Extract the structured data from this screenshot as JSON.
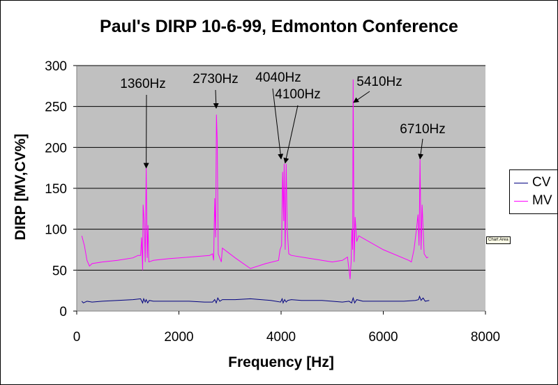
{
  "title": "Paul's DIRP 10-6-99, Edmonton Conference",
  "chart_area_tooltip": "Chart Area",
  "chart_data": {
    "type": "line",
    "title": "Paul's DIRP 10-6-99, Edmonton Conference",
    "xlabel": "Frequency [Hz]",
    "ylabel": "DIRP [MV,CV%]",
    "xlim": [
      0,
      8000
    ],
    "ylim": [
      0,
      300
    ],
    "xticks": [
      0,
      2000,
      4000,
      6000,
      8000
    ],
    "yticks": [
      0,
      50,
      100,
      150,
      200,
      250,
      300
    ],
    "grid": "horizontal",
    "plot_background": "#c0c0c0",
    "legend_position": "right",
    "series": [
      {
        "name": "CV",
        "color": "#000080",
        "points": [
          [
            100,
            12
          ],
          [
            130,
            10
          ],
          [
            200,
            12
          ],
          [
            300,
            11
          ],
          [
            500,
            12
          ],
          [
            800,
            13
          ],
          [
            1100,
            14
          ],
          [
            1250,
            15
          ],
          [
            1290,
            10
          ],
          [
            1310,
            15
          ],
          [
            1340,
            11
          ],
          [
            1360,
            14
          ],
          [
            1390,
            10
          ],
          [
            1420,
            13
          ],
          [
            1500,
            12
          ],
          [
            1800,
            12
          ],
          [
            2200,
            12
          ],
          [
            2500,
            11
          ],
          [
            2660,
            11
          ],
          [
            2700,
            14
          ],
          [
            2730,
            10
          ],
          [
            2760,
            16
          ],
          [
            2800,
            12
          ],
          [
            2850,
            14
          ],
          [
            3100,
            14
          ],
          [
            3400,
            15
          ],
          [
            3800,
            13
          ],
          [
            3990,
            11
          ],
          [
            4020,
            15
          ],
          [
            4040,
            10
          ],
          [
            4070,
            14
          ],
          [
            4100,
            11
          ],
          [
            4130,
            13
          ],
          [
            4200,
            14
          ],
          [
            4400,
            13
          ],
          [
            4800,
            13
          ],
          [
            5200,
            11
          ],
          [
            5330,
            12
          ],
          [
            5380,
            10
          ],
          [
            5410,
            16
          ],
          [
            5440,
            10
          ],
          [
            5480,
            14
          ],
          [
            5600,
            12
          ],
          [
            6000,
            12
          ],
          [
            6400,
            12
          ],
          [
            6630,
            13
          ],
          [
            6690,
            14
          ],
          [
            6710,
            18
          ],
          [
            6740,
            13
          ],
          [
            6780,
            16
          ],
          [
            6820,
            12
          ],
          [
            6900,
            13
          ]
        ]
      },
      {
        "name": "MV",
        "color": "#ff00ff",
        "points": [
          [
            100,
            92
          ],
          [
            150,
            80
          ],
          [
            200,
            62
          ],
          [
            250,
            55
          ],
          [
            300,
            58
          ],
          [
            500,
            60
          ],
          [
            800,
            62
          ],
          [
            1100,
            65
          ],
          [
            1200,
            68
          ],
          [
            1250,
            68
          ],
          [
            1270,
            90
          ],
          [
            1290,
            50
          ],
          [
            1300,
            130
          ],
          [
            1320,
            110
          ],
          [
            1340,
            60
          ],
          [
            1360,
            175
          ],
          [
            1380,
            65
          ],
          [
            1395,
            105
          ],
          [
            1410,
            60
          ],
          [
            1500,
            62
          ],
          [
            1800,
            64
          ],
          [
            2200,
            66
          ],
          [
            2600,
            68
          ],
          [
            2660,
            70
          ],
          [
            2680,
            62
          ],
          [
            2700,
            138
          ],
          [
            2720,
            90
          ],
          [
            2735,
            240
          ],
          [
            2750,
            210
          ],
          [
            2770,
            70
          ],
          [
            2800,
            65
          ],
          [
            2830,
            60
          ],
          [
            2850,
            77
          ],
          [
            3100,
            65
          ],
          [
            3400,
            52
          ],
          [
            3700,
            58
          ],
          [
            3950,
            62
          ],
          [
            3980,
            75
          ],
          [
            4010,
            80
          ],
          [
            4030,
            170
          ],
          [
            4050,
            110
          ],
          [
            4060,
            180
          ],
          [
            4080,
            75
          ],
          [
            4100,
            180
          ],
          [
            4120,
            100
          ],
          [
            4150,
            70
          ],
          [
            4200,
            68
          ],
          [
            4500,
            65
          ],
          [
            4800,
            62
          ],
          [
            5000,
            60
          ],
          [
            5200,
            62
          ],
          [
            5300,
            66
          ],
          [
            5320,
            55
          ],
          [
            5340,
            45
          ],
          [
            5350,
            39
          ],
          [
            5370,
            60
          ],
          [
            5385,
            100
          ],
          [
            5400,
            75
          ],
          [
            5410,
            283
          ],
          [
            5430,
            60
          ],
          [
            5450,
            115
          ],
          [
            5480,
            85
          ],
          [
            5520,
            92
          ],
          [
            6000,
            75
          ],
          [
            6500,
            62
          ],
          [
            6550,
            60
          ],
          [
            6600,
            75
          ],
          [
            6650,
            100
          ],
          [
            6680,
            118
          ],
          [
            6700,
            80
          ],
          [
            6720,
            185
          ],
          [
            6740,
            75
          ],
          [
            6760,
            130
          ],
          [
            6800,
            70
          ],
          [
            6850,
            65
          ],
          [
            6880,
            66
          ]
        ]
      }
    ],
    "annotations": [
      {
        "text": "1360Hz",
        "x": 1360,
        "y": 175
      },
      {
        "text": "2730Hz",
        "x": 2730,
        "y": 248
      },
      {
        "text": "4040Hz",
        "x": 4000,
        "y": 186
      },
      {
        "text": "4100Hz",
        "x": 4080,
        "y": 181
      },
      {
        "text": "5410Hz",
        "x": 5420,
        "y": 255
      },
      {
        "text": "6710Hz",
        "x": 6720,
        "y": 186
      }
    ]
  }
}
